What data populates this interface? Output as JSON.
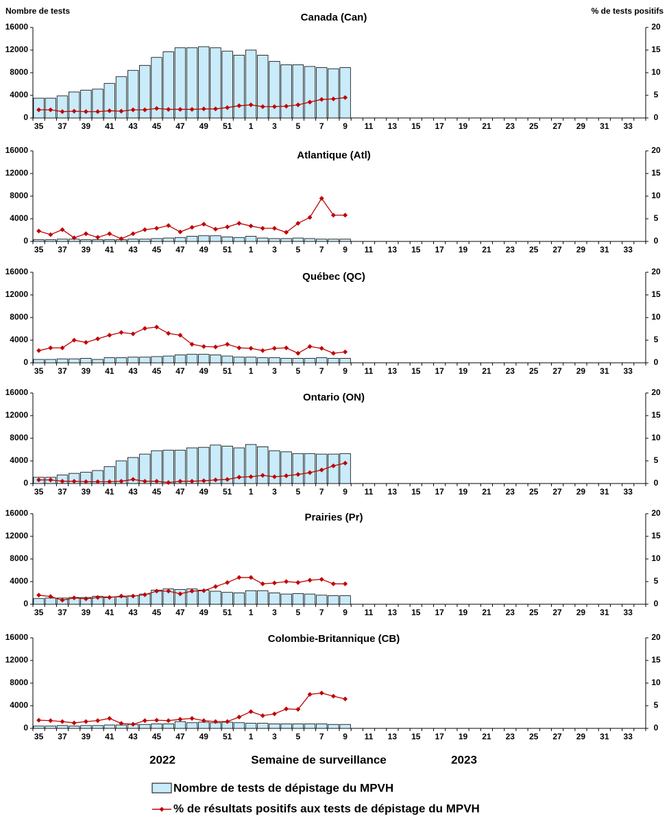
{
  "figure": {
    "ylabel": "Nombre de tests",
    "y2label": "% de tests positifs",
    "xlabel": "Semaine de surveillance",
    "year_labels": [
      "2022",
      "2023"
    ],
    "legend": [
      {
        "name": "Nombre de tests de dépistage du MPVH",
        "color": "#c9ebfa"
      },
      {
        "name": "% de résultats positifs aux tests de dépistage du MPVH",
        "color": "#c00000"
      }
    ]
  },
  "chart_data": [
    {
      "type": "bar-line",
      "title": "Canada (Can)",
      "categories": [
        "35",
        null,
        "37",
        null,
        "39",
        null,
        "41",
        null,
        "43",
        null,
        "45",
        null,
        "47",
        null,
        "49",
        null,
        "51",
        null,
        "1",
        null,
        "3",
        null,
        "5",
        null,
        "7",
        null,
        "9",
        null,
        "11",
        null,
        "13",
        null,
        "15",
        null,
        "17",
        null,
        "19",
        null,
        "21",
        null,
        "23",
        null,
        "25",
        null,
        "27",
        null,
        "29",
        null,
        "31",
        null,
        "33",
        null
      ],
      "ylim": [
        0,
        16000
      ],
      "yticks": [
        0,
        4000,
        8000,
        12000,
        16000
      ],
      "y2lim": [
        0,
        20
      ],
      "y2ticks": [
        0,
        5,
        10,
        15,
        20
      ],
      "series": [
        {
          "type": "bar",
          "values": [
            3500,
            3500,
            3900,
            4600,
            4900,
            5100,
            6100,
            7300,
            8400,
            9300,
            10700,
            11700,
            12400,
            12400,
            12600,
            12400,
            11800,
            11100,
            12000,
            11100,
            10000,
            9400,
            9400,
            9100,
            8900,
            8700,
            8900,
            null,
            null,
            null,
            null,
            null,
            null,
            null,
            null,
            null,
            null,
            null,
            null,
            null,
            null,
            null,
            null,
            null,
            null,
            null,
            null,
            null,
            null,
            null,
            null,
            null
          ]
        },
        {
          "type": "line",
          "axis": "y2",
          "values": [
            1.8,
            1.8,
            1.4,
            1.5,
            1.4,
            1.4,
            1.6,
            1.5,
            1.8,
            1.8,
            2.1,
            1.9,
            1.9,
            1.9,
            2.0,
            2.0,
            2.3,
            2.7,
            2.9,
            2.5,
            2.5,
            2.6,
            2.9,
            3.5,
            4.1,
            4.2,
            4.5,
            null,
            null,
            null,
            null,
            null,
            null,
            null,
            null,
            null,
            null,
            null,
            null,
            null,
            null,
            null,
            null,
            null,
            null,
            null,
            null,
            null,
            null,
            null,
            null,
            null
          ]
        }
      ]
    },
    {
      "type": "bar-line",
      "title": "Atlantique (Atl)",
      "categories": [
        "35",
        null,
        "37",
        null,
        "39",
        null,
        "41",
        null,
        "43",
        null,
        "45",
        null,
        "47",
        null,
        "49",
        null,
        "51",
        null,
        "1",
        null,
        "3",
        null,
        "5",
        null,
        "7",
        null,
        "9",
        null,
        "11",
        null,
        "13",
        null,
        "15",
        null,
        "17",
        null,
        "19",
        null,
        "21",
        null,
        "23",
        null,
        "25",
        null,
        "27",
        null,
        "29",
        null,
        "31",
        null,
        "33",
        null
      ],
      "ylim": [
        0,
        16000
      ],
      "yticks": [
        0,
        4000,
        8000,
        12000,
        16000
      ],
      "y2lim": [
        0,
        20
      ],
      "y2ticks": [
        0,
        5,
        10,
        15,
        20
      ],
      "series": [
        {
          "type": "bar",
          "values": [
            300,
            300,
            400,
            400,
            300,
            300,
            300,
            300,
            400,
            400,
            500,
            600,
            700,
            900,
            1000,
            1000,
            800,
            700,
            900,
            600,
            500,
            500,
            600,
            500,
            400,
            400,
            400,
            null,
            null,
            null,
            null,
            null,
            null,
            null,
            null,
            null,
            null,
            null,
            null,
            null,
            null,
            null,
            null,
            null,
            null,
            null,
            null,
            null,
            null,
            null,
            null,
            null
          ]
        },
        {
          "type": "line",
          "axis": "y2",
          "values": [
            2.3,
            1.5,
            2.6,
            0.8,
            1.7,
            0.9,
            1.7,
            0.6,
            1.7,
            2.6,
            2.9,
            3.5,
            2.1,
            3.1,
            3.8,
            2.7,
            3.2,
            4.0,
            3.4,
            2.9,
            2.9,
            2.0,
            4.0,
            5.3,
            9.5,
            5.8,
            5.8,
            null,
            null,
            null,
            null,
            null,
            null,
            null,
            null,
            null,
            null,
            null,
            null,
            null,
            null,
            null,
            null,
            null,
            null,
            null,
            null,
            null,
            null,
            null,
            null,
            null
          ]
        }
      ]
    },
    {
      "type": "bar-line",
      "title": "Québec (QC)",
      "categories": [
        "35",
        null,
        "37",
        null,
        "39",
        null,
        "41",
        null,
        "43",
        null,
        "45",
        null,
        "47",
        null,
        "49",
        null,
        "51",
        null,
        "1",
        null,
        "3",
        null,
        "5",
        null,
        "7",
        null,
        "9",
        null,
        "11",
        null,
        "13",
        null,
        "15",
        null,
        "17",
        null,
        "19",
        null,
        "21",
        null,
        "23",
        null,
        "25",
        null,
        "27",
        null,
        "29",
        null,
        "31",
        null,
        "33",
        null
      ],
      "ylim": [
        0,
        16000
      ],
      "yticks": [
        0,
        4000,
        8000,
        12000,
        16000
      ],
      "y2lim": [
        0,
        20
      ],
      "y2ticks": [
        0,
        5,
        10,
        15,
        20
      ],
      "series": [
        {
          "type": "bar",
          "values": [
            600,
            600,
            700,
            700,
            800,
            600,
            900,
            900,
            1000,
            1000,
            1100,
            1200,
            1400,
            1500,
            1500,
            1400,
            1200,
            1000,
            1000,
            900,
            900,
            800,
            800,
            800,
            900,
            800,
            800,
            null,
            null,
            null,
            null,
            null,
            null,
            null,
            null,
            null,
            null,
            null,
            null,
            null,
            null,
            null,
            null,
            null,
            null,
            null,
            null,
            null,
            null,
            null,
            null,
            null
          ]
        },
        {
          "type": "line",
          "axis": "y2",
          "values": [
            2.7,
            3.3,
            3.3,
            5.0,
            4.5,
            5.3,
            6.1,
            6.7,
            6.4,
            7.6,
            7.9,
            6.5,
            6.1,
            4.1,
            3.6,
            3.5,
            4.1,
            3.3,
            3.2,
            2.7,
            3.2,
            3.3,
            2.1,
            3.6,
            3.2,
            2.1,
            2.4,
            null,
            null,
            null,
            null,
            null,
            null,
            null,
            null,
            null,
            null,
            null,
            null,
            null,
            null,
            null,
            null,
            null,
            null,
            null,
            null,
            null,
            null,
            null,
            null,
            null
          ]
        }
      ]
    },
    {
      "type": "bar-line",
      "title": "Ontario (ON)",
      "categories": [
        "35",
        null,
        "37",
        null,
        "39",
        null,
        "41",
        null,
        "43",
        null,
        "45",
        null,
        "47",
        null,
        "49",
        null,
        "51",
        null,
        "1",
        null,
        "3",
        null,
        "5",
        null,
        "7",
        null,
        "9",
        null,
        "11",
        null,
        "13",
        null,
        "15",
        null,
        "17",
        null,
        "19",
        null,
        "21",
        null,
        "23",
        null,
        "25",
        null,
        "27",
        null,
        "29",
        null,
        "31",
        null,
        "33",
        null
      ],
      "ylim": [
        0,
        16000
      ],
      "yticks": [
        0,
        4000,
        8000,
        12000,
        16000
      ],
      "y2lim": [
        0,
        20
      ],
      "y2ticks": [
        0,
        5,
        10,
        15,
        20
      ],
      "series": [
        {
          "type": "bar",
          "values": [
            1100,
            1100,
            1500,
            1800,
            2000,
            2300,
            3000,
            4000,
            4600,
            5200,
            5800,
            5900,
            5900,
            6300,
            6400,
            6800,
            6600,
            6300,
            6900,
            6500,
            5800,
            5600,
            5300,
            5300,
            5200,
            5200,
            5300,
            null,
            null,
            null,
            null,
            null,
            null,
            null,
            null,
            null,
            null,
            null,
            null,
            null,
            null,
            null,
            null,
            null,
            null,
            null,
            null,
            null,
            null,
            null,
            null,
            null
          ]
        },
        {
          "type": "line",
          "axis": "y2",
          "values": [
            0.8,
            0.8,
            0.5,
            0.5,
            0.4,
            0.4,
            0.4,
            0.5,
            0.9,
            0.5,
            0.5,
            0.2,
            0.5,
            0.5,
            0.6,
            0.8,
            0.9,
            1.4,
            1.5,
            1.8,
            1.5,
            1.7,
            2.0,
            2.4,
            3.0,
            3.9,
            4.5,
            null,
            null,
            null,
            null,
            null,
            null,
            null,
            null,
            null,
            null,
            null,
            null,
            null,
            null,
            null,
            null,
            null,
            null,
            null,
            null,
            null,
            null,
            null,
            null,
            null
          ]
        }
      ]
    },
    {
      "type": "bar-line",
      "title": "Prairies (Pr)",
      "categories": [
        "35",
        null,
        "37",
        null,
        "39",
        null,
        "41",
        null,
        "43",
        null,
        "45",
        null,
        "47",
        null,
        "49",
        null,
        "51",
        null,
        "1",
        null,
        "3",
        null,
        "5",
        null,
        "7",
        null,
        "9",
        null,
        "11",
        null,
        "13",
        null,
        "15",
        null,
        "17",
        null,
        "19",
        null,
        "21",
        null,
        "23",
        null,
        "25",
        null,
        "27",
        null,
        "29",
        null,
        "31",
        null,
        "33",
        null
      ],
      "ylim": [
        0,
        16000
      ],
      "yticks": [
        0,
        4000,
        8000,
        12000,
        16000
      ],
      "y2lim": [
        0,
        20
      ],
      "y2ticks": [
        0,
        5,
        10,
        15,
        20
      ],
      "series": [
        {
          "type": "bar",
          "values": [
            1000,
            1100,
            1100,
            1200,
            1200,
            1400,
            1300,
            1300,
            1500,
            1800,
            2500,
            2700,
            2600,
            2700,
            2500,
            2300,
            2100,
            2000,
            2400,
            2400,
            2000,
            1800,
            1900,
            1800,
            1600,
            1500,
            1500,
            null,
            null,
            null,
            null,
            null,
            null,
            null,
            null,
            null,
            null,
            null,
            null,
            null,
            null,
            null,
            null,
            null,
            null,
            null,
            null,
            null,
            null,
            null,
            null,
            null
          ]
        },
        {
          "type": "line",
          "axis": "y2",
          "values": [
            2.0,
            1.7,
            0.9,
            1.4,
            1.2,
            1.5,
            1.5,
            1.8,
            1.8,
            2.1,
            2.9,
            2.9,
            2.3,
            2.9,
            3.0,
            3.9,
            4.8,
            5.9,
            5.9,
            4.5,
            4.7,
            5.0,
            4.8,
            5.3,
            5.5,
            4.5,
            4.5,
            null,
            null,
            null,
            null,
            null,
            null,
            null,
            null,
            null,
            null,
            null,
            null,
            null,
            null,
            null,
            null,
            null,
            null,
            null,
            null,
            null,
            null,
            null,
            null,
            null
          ]
        }
      ]
    },
    {
      "type": "bar-line",
      "title": "Colombie-Britannique (CB)",
      "categories": [
        "35",
        null,
        "37",
        null,
        "39",
        null,
        "41",
        null,
        "43",
        null,
        "45",
        null,
        "47",
        null,
        "49",
        null,
        "51",
        null,
        "1",
        null,
        "3",
        null,
        "5",
        null,
        "7",
        null,
        "9",
        null,
        "11",
        null,
        "13",
        null,
        "15",
        null,
        "17",
        null,
        "19",
        null,
        "21",
        null,
        "23",
        null,
        "25",
        null,
        "27",
        null,
        "29",
        null,
        "31",
        null,
        "33",
        null
      ],
      "ylim": [
        0,
        16000
      ],
      "yticks": [
        0,
        4000,
        8000,
        12000,
        16000
      ],
      "y2lim": [
        0,
        20
      ],
      "y2ticks": [
        0,
        5,
        10,
        15,
        20
      ],
      "series": [
        {
          "type": "bar",
          "values": [
            400,
            400,
            500,
            400,
            500,
            500,
            600,
            600,
            700,
            700,
            800,
            800,
            1200,
            1000,
            1100,
            1000,
            1100,
            1000,
            900,
            900,
            800,
            800,
            800,
            800,
            800,
            700,
            700,
            null,
            null,
            null,
            null,
            null,
            null,
            null,
            null,
            null,
            null,
            null,
            null,
            null,
            null,
            null,
            null,
            null,
            null,
            null,
            null,
            null,
            null,
            null,
            null,
            null
          ]
        },
        {
          "type": "line",
          "axis": "y2",
          "values": [
            1.8,
            1.7,
            1.5,
            1.2,
            1.5,
            1.7,
            2.2,
            1.1,
            0.9,
            1.7,
            1.8,
            1.7,
            2.0,
            2.2,
            1.7,
            1.5,
            1.5,
            2.5,
            3.7,
            2.8,
            3.2,
            4.3,
            4.2,
            7.5,
            7.8,
            7.1,
            6.5,
            null,
            null,
            null,
            null,
            null,
            null,
            null,
            null,
            null,
            null,
            null,
            null,
            null,
            null,
            null,
            null,
            null,
            null,
            null,
            null,
            null,
            null,
            null,
            null,
            null
          ]
        }
      ]
    }
  ]
}
